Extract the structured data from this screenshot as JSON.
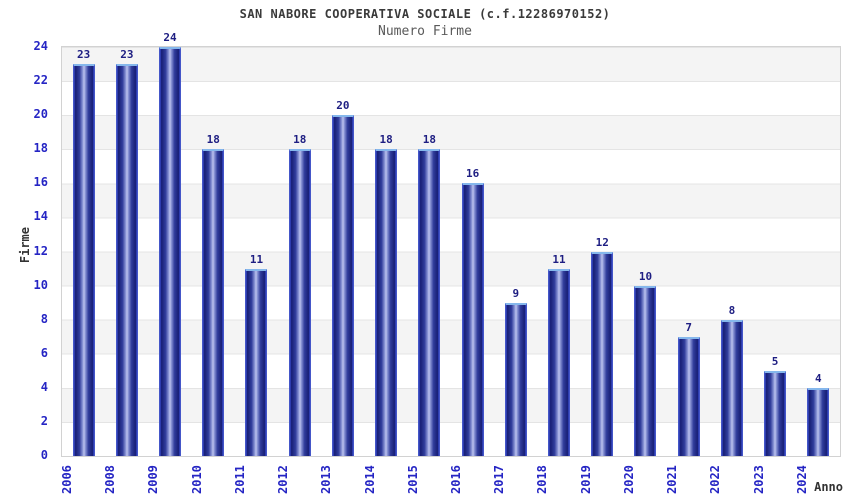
{
  "chart_data": {
    "type": "bar",
    "title": "SAN NABORE COOPERATIVA SOCIALE (c.f.12286970152)",
    "subtitle": "Numero Firme",
    "xlabel": "Anno",
    "ylabel": "Firme",
    "categories": [
      "2006",
      "2008",
      "2009",
      "2010",
      "2011",
      "2012",
      "2013",
      "2014",
      "2015",
      "2016",
      "2017",
      "2018",
      "2019",
      "2020",
      "2021",
      "2022",
      "2023",
      "2024"
    ],
    "values": [
      23,
      23,
      24,
      18,
      11,
      18,
      20,
      18,
      18,
      16,
      9,
      11,
      12,
      10,
      7,
      8,
      5,
      4
    ],
    "ylim": [
      0,
      24
    ],
    "ytick_step": 2,
    "grid": "horizontal alternating bands every 2 units with gridlines",
    "legend_position": "none",
    "colors": {
      "band_gray": "#f4f4f4",
      "band_white": "#ffffff",
      "gridline": "#e4e4e4",
      "plot_border": "#d2d2d2",
      "bar_dark": "#171e74",
      "bar_light": "#c2c9ee",
      "bar_edge": "#4456c8",
      "bar_top_border": "#85b7ec",
      "tick_label": "#2525c4",
      "value_label": "#1e1e82",
      "title": "#3a3a3a",
      "subtitle": "#5a5a5a",
      "axis_title": "#333333"
    }
  }
}
